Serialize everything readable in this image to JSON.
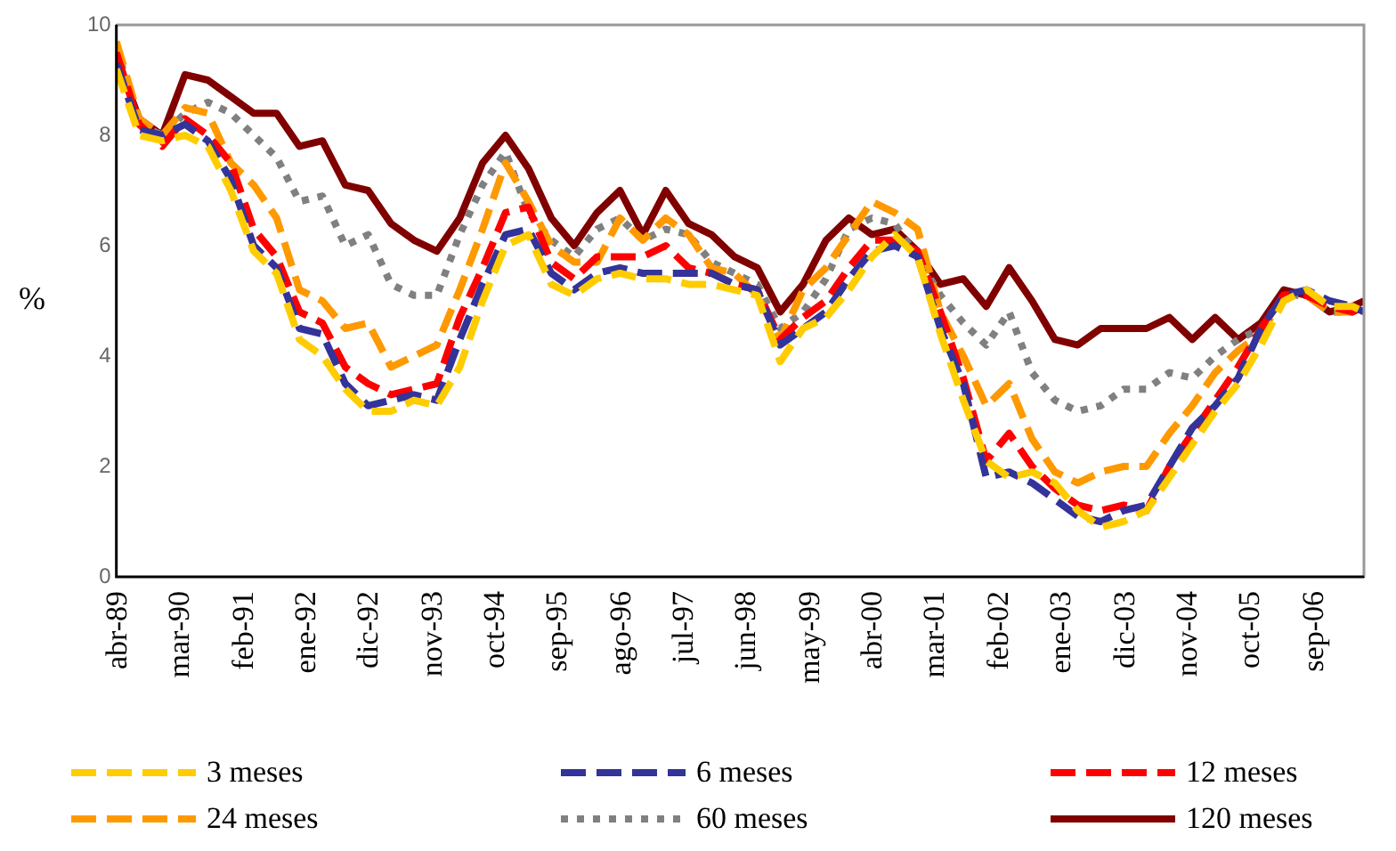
{
  "chart_data": {
    "type": "line",
    "ylabel": "%",
    "x": [
      "1989-04",
      "1989-08",
      "1989-12",
      "1990-04",
      "1990-08",
      "1990-12",
      "1991-04",
      "1991-08",
      "1991-12",
      "1992-04",
      "1992-08",
      "1992-12",
      "1993-04",
      "1993-08",
      "1993-12",
      "1994-04",
      "1994-08",
      "1994-12",
      "1995-04",
      "1995-08",
      "1995-12",
      "1996-04",
      "1996-08",
      "1996-12",
      "1997-04",
      "1997-08",
      "1997-12",
      "1998-04",
      "1998-08",
      "1998-12",
      "1999-04",
      "1999-08",
      "1999-12",
      "2000-04",
      "2000-08",
      "2000-12",
      "2001-04",
      "2001-08",
      "2001-12",
      "2002-04",
      "2002-08",
      "2002-12",
      "2003-04",
      "2003-08",
      "2003-12",
      "2004-04",
      "2004-08",
      "2004-12",
      "2005-04",
      "2005-08",
      "2005-12",
      "2006-04",
      "2006-08",
      "2006-12",
      "2007-04",
      "2007-06"
    ],
    "series": [
      {
        "name": "3 meses",
        "color": "#ffcc00",
        "line_style": "dashed",
        "values": [
          9.2,
          8.0,
          7.9,
          8.0,
          7.8,
          7.0,
          5.9,
          5.5,
          4.3,
          4.0,
          3.4,
          3.0,
          3.0,
          3.2,
          3.1,
          3.8,
          5.0,
          6.0,
          6.2,
          5.3,
          5.1,
          5.4,
          5.5,
          5.4,
          5.4,
          5.3,
          5.3,
          5.2,
          5.1,
          3.9,
          4.5,
          4.7,
          5.2,
          5.8,
          6.2,
          5.8,
          4.4,
          3.2,
          2.1,
          1.8,
          1.9,
          1.7,
          1.2,
          0.9,
          1.0,
          1.2,
          1.8,
          2.4,
          3.0,
          3.5,
          4.2,
          5.0,
          5.2,
          4.9,
          4.9,
          4.8
        ]
      },
      {
        "name": "6 meses",
        "color": "#333399",
        "line_style": "dashed",
        "values": [
          9.3,
          8.1,
          8.0,
          8.2,
          7.9,
          7.2,
          6.0,
          5.6,
          4.5,
          4.4,
          3.5,
          3.1,
          3.2,
          3.3,
          3.2,
          4.3,
          5.3,
          6.2,
          6.3,
          5.5,
          5.2,
          5.5,
          5.6,
          5.5,
          5.5,
          5.5,
          5.5,
          5.3,
          5.2,
          4.2,
          4.5,
          4.8,
          5.4,
          5.9,
          6.0,
          5.8,
          4.5,
          3.5,
          1.8,
          1.9,
          1.7,
          1.4,
          1.1,
          1.0,
          1.2,
          1.3,
          2.0,
          2.7,
          3.1,
          3.6,
          4.5,
          5.1,
          5.2,
          5.0,
          4.9,
          4.8
        ]
      },
      {
        "name": "12 meses",
        "color": "#ff0000",
        "line_style": "dashed",
        "values": [
          9.5,
          8.2,
          7.8,
          8.3,
          8.0,
          7.5,
          6.3,
          5.8,
          4.8,
          4.6,
          3.8,
          3.5,
          3.3,
          3.4,
          3.5,
          4.7,
          5.6,
          6.6,
          6.7,
          5.7,
          5.4,
          5.8,
          5.8,
          5.8,
          6.0,
          5.6,
          5.5,
          5.3,
          5.2,
          4.3,
          4.7,
          5.0,
          5.6,
          6.1,
          6.1,
          5.9,
          4.8,
          3.6,
          2.1,
          2.6,
          2.0,
          1.6,
          1.3,
          1.2,
          1.3,
          1.2,
          2.0,
          2.6,
          3.2,
          3.8,
          4.5,
          5.1,
          5.1,
          4.9,
          4.8,
          4.9
        ]
      },
      {
        "name": "24 meses",
        "color": "#ff9900",
        "line_style": "dashed",
        "values": [
          9.7,
          8.3,
          8.0,
          8.5,
          8.4,
          7.5,
          7.1,
          6.5,
          5.2,
          5.0,
          4.5,
          4.6,
          3.8,
          4.0,
          4.2,
          5.2,
          6.3,
          7.5,
          6.8,
          6.0,
          5.7,
          5.7,
          6.5,
          6.1,
          6.5,
          6.2,
          5.6,
          5.5,
          5.1,
          4.3,
          5.2,
          5.6,
          6.2,
          6.8,
          6.6,
          6.3,
          4.8,
          4.0,
          3.1,
          3.5,
          2.5,
          1.9,
          1.7,
          1.9,
          2.0,
          2.0,
          2.6,
          3.1,
          3.7,
          4.1,
          4.4,
          5.1,
          5.1,
          4.8,
          4.8,
          4.9
        ]
      },
      {
        "name": "60 meses",
        "color": "#808080",
        "line_style": "dotted",
        "values": [
          9.6,
          8.2,
          8.0,
          8.4,
          8.6,
          8.4,
          8.0,
          7.6,
          6.8,
          6.9,
          6.0,
          6.2,
          5.3,
          5.1,
          5.1,
          6.2,
          7.1,
          7.7,
          6.6,
          6.1,
          5.8,
          6.3,
          6.5,
          6.1,
          6.3,
          6.2,
          5.7,
          5.5,
          5.3,
          4.5,
          4.8,
          5.4,
          6.3,
          6.5,
          6.4,
          5.8,
          5.1,
          4.6,
          4.2,
          4.8,
          3.7,
          3.2,
          3.0,
          3.1,
          3.4,
          3.4,
          3.7,
          3.6,
          4.0,
          4.3,
          4.5,
          5.1,
          5.1,
          4.8,
          4.8,
          4.9
        ]
      },
      {
        "name": "120 meses",
        "color": "#800000",
        "line_style": "solid",
        "values": [
          9.4,
          8.3,
          8.0,
          9.1,
          9.0,
          8.7,
          8.4,
          8.4,
          7.8,
          7.9,
          7.1,
          7.0,
          6.4,
          6.1,
          5.9,
          6.5,
          7.5,
          8.0,
          7.4,
          6.5,
          6.0,
          6.6,
          7.0,
          6.2,
          7.0,
          6.4,
          6.2,
          5.8,
          5.6,
          4.8,
          5.3,
          6.1,
          6.5,
          6.2,
          6.3,
          5.9,
          5.3,
          5.4,
          4.9,
          5.6,
          5.0,
          4.3,
          4.2,
          4.5,
          4.5,
          4.5,
          4.7,
          4.3,
          4.7,
          4.3,
          4.6,
          5.2,
          5.1,
          4.8,
          4.9,
          5.0
        ]
      }
    ],
    "xlim": [
      "1989-04",
      "2007-06"
    ],
    "xticks": [
      {
        "value": "1989-04",
        "label": "abr-89"
      },
      {
        "value": "1990-03",
        "label": "mar-90"
      },
      {
        "value": "1991-02",
        "label": "feb-91"
      },
      {
        "value": "1992-01",
        "label": "ene-92"
      },
      {
        "value": "1992-12",
        "label": "dic-92"
      },
      {
        "value": "1993-11",
        "label": "nov-93"
      },
      {
        "value": "1994-10",
        "label": "oct-94"
      },
      {
        "value": "1995-09",
        "label": "sep-95"
      },
      {
        "value": "1996-08",
        "label": "ago-96"
      },
      {
        "value": "1997-07",
        "label": "jul-97"
      },
      {
        "value": "1998-06",
        "label": "jun-98"
      },
      {
        "value": "1999-05",
        "label": "may-99"
      },
      {
        "value": "2000-04",
        "label": "abr-00"
      },
      {
        "value": "2001-03",
        "label": "mar-01"
      },
      {
        "value": "2002-02",
        "label": "feb-02"
      },
      {
        "value": "2003-01",
        "label": "ene-03"
      },
      {
        "value": "2003-12",
        "label": "dic-03"
      },
      {
        "value": "2004-11",
        "label": "nov-04"
      },
      {
        "value": "2005-10",
        "label": "oct-05"
      },
      {
        "value": "2006-09",
        "label": "sep-06"
      }
    ],
    "ylim": [
      0,
      10
    ],
    "yticks": [
      0,
      2,
      4,
      6,
      8,
      10
    ],
    "grid": false,
    "legend": "bottom",
    "marker": "none"
  }
}
